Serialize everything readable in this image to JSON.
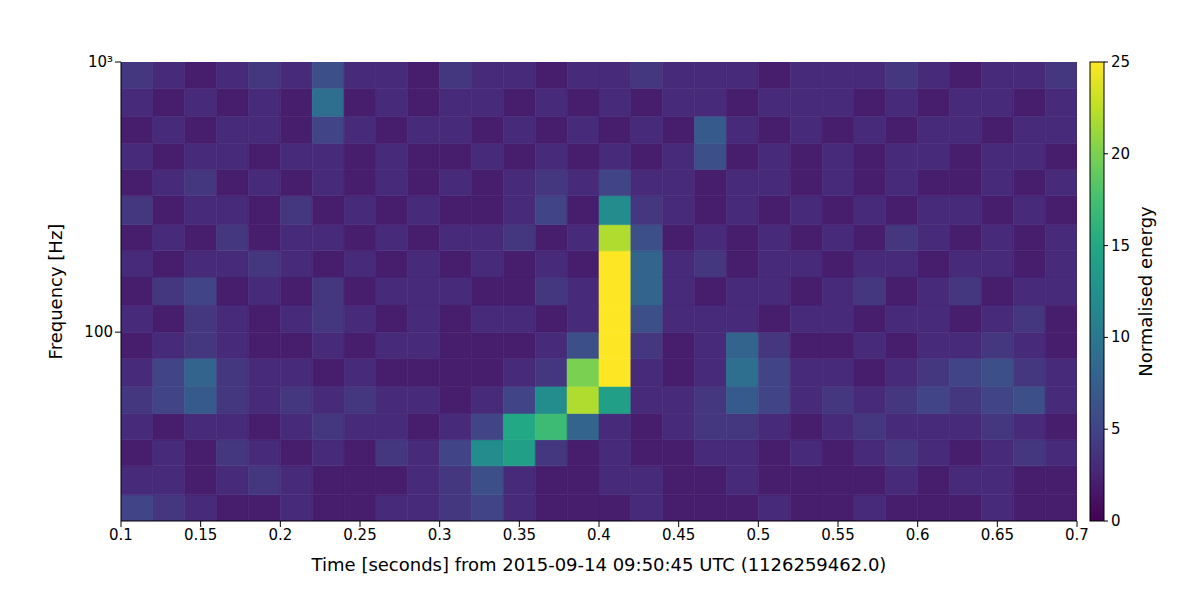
{
  "chart_data": {
    "type": "heatmap",
    "x_label": "Time [seconds] from 2015-09-14 09:50:45 UTC (1126259462.0)",
    "y_label": "Frequency [Hz]",
    "log": "y",
    "grid": false,
    "xlim": [
      0.1,
      0.7
    ],
    "xticks": [
      0.1,
      0.15,
      0.2,
      0.25,
      0.3,
      0.35,
      0.4,
      0.45,
      0.5,
      0.55,
      0.6,
      0.65,
      0.7
    ],
    "ylim": [
      20,
      1000
    ],
    "yticks": [
      {
        "value": 100,
        "label": "100"
      },
      {
        "value": 1000,
        "label": "10³"
      }
    ],
    "x_edges": [
      0.1,
      0.12,
      0.14,
      0.16,
      0.18,
      0.2,
      0.22,
      0.24,
      0.26,
      0.28,
      0.3,
      0.32,
      0.34,
      0.36,
      0.38,
      0.4,
      0.42,
      0.44,
      0.46,
      0.48,
      0.5,
      0.52,
      0.54,
      0.56,
      0.58,
      0.6,
      0.62,
      0.64,
      0.66,
      0.68,
      0.7
    ],
    "y_edges": [
      20,
      25,
      32,
      40,
      50,
      63,
      80,
      100,
      126,
      160,
      200,
      250,
      320,
      400,
      500,
      630,
      800,
      1000
    ],
    "cells": [
      [
        5,
        4,
        3,
        2,
        2,
        3,
        2,
        2,
        3,
        3,
        4,
        5,
        3,
        2,
        2,
        2,
        3,
        2,
        2,
        2,
        3,
        2,
        2,
        3,
        2,
        2,
        2,
        3,
        2,
        2
      ],
      [
        3,
        3,
        2,
        3,
        4,
        3,
        2,
        2,
        2,
        3,
        4,
        6,
        3,
        2,
        2,
        3,
        3,
        2,
        2,
        3,
        2,
        2,
        2,
        2,
        3,
        2,
        3,
        3,
        2,
        2
      ],
      [
        2,
        3,
        2,
        4,
        3,
        2,
        3,
        2,
        4,
        3,
        5,
        12,
        14,
        4,
        2,
        3,
        2,
        2,
        3,
        3,
        2,
        3,
        2,
        3,
        4,
        3,
        2,
        3,
        4,
        3
      ],
      [
        3,
        2,
        3,
        3,
        2,
        3,
        4,
        3,
        3,
        2,
        3,
        5,
        15,
        17,
        8,
        3,
        2,
        3,
        4,
        4,
        3,
        2,
        3,
        4,
        3,
        3,
        3,
        4,
        3,
        2
      ],
      [
        4,
        5,
        7,
        4,
        3,
        4,
        3,
        4,
        3,
        3,
        2,
        3,
        5,
        12,
        22,
        14,
        3,
        3,
        4,
        7,
        5,
        3,
        4,
        3,
        4,
        5,
        4,
        5,
        6,
        3
      ],
      [
        3,
        5,
        8,
        4,
        3,
        3,
        2,
        3,
        2,
        2,
        2,
        2,
        3,
        4,
        20,
        25,
        3,
        2,
        3,
        9,
        5,
        3,
        3,
        2,
        3,
        4,
        5,
        6,
        4,
        3
      ],
      [
        2,
        3,
        4,
        3,
        2,
        2,
        3,
        2,
        3,
        3,
        2,
        2,
        2,
        3,
        6,
        25,
        4,
        2,
        3,
        8,
        4,
        2,
        2,
        3,
        2,
        3,
        3,
        4,
        3,
        2
      ],
      [
        3,
        2,
        4,
        3,
        2,
        3,
        4,
        3,
        2,
        3,
        2,
        3,
        3,
        2,
        3,
        25,
        6,
        3,
        3,
        3,
        2,
        3,
        3,
        2,
        3,
        3,
        2,
        3,
        4,
        2
      ],
      [
        2,
        4,
        5,
        2,
        3,
        2,
        4,
        2,
        3,
        3,
        3,
        2,
        2,
        4,
        3,
        25,
        8,
        3,
        2,
        3,
        3,
        2,
        3,
        4,
        2,
        3,
        4,
        2,
        3,
        3
      ],
      [
        3,
        2,
        3,
        3,
        4,
        3,
        2,
        3,
        2,
        3,
        2,
        3,
        2,
        3,
        2,
        25,
        8,
        3,
        4,
        2,
        3,
        3,
        2,
        3,
        3,
        2,
        3,
        3,
        2,
        3
      ],
      [
        2,
        3,
        2,
        4,
        2,
        3,
        3,
        2,
        3,
        2,
        3,
        3,
        4,
        2,
        3,
        22,
        6,
        2,
        3,
        2,
        3,
        2,
        3,
        2,
        4,
        3,
        2,
        3,
        2,
        3
      ],
      [
        4,
        2,
        3,
        3,
        2,
        4,
        2,
        3,
        2,
        3,
        2,
        2,
        3,
        5,
        2,
        12,
        4,
        3,
        2,
        3,
        2,
        3,
        2,
        3,
        2,
        3,
        3,
        2,
        3,
        2
      ],
      [
        2,
        3,
        4,
        2,
        3,
        2,
        3,
        2,
        3,
        2,
        3,
        2,
        3,
        4,
        3,
        5,
        3,
        3,
        2,
        3,
        3,
        2,
        3,
        2,
        3,
        2,
        2,
        3,
        2,
        3
      ],
      [
        3,
        2,
        3,
        3,
        2,
        3,
        3,
        2,
        3,
        2,
        2,
        3,
        2,
        3,
        2,
        3,
        2,
        3,
        6,
        2,
        3,
        2,
        3,
        2,
        3,
        3,
        2,
        3,
        3,
        2
      ],
      [
        2,
        3,
        2,
        3,
        3,
        2,
        5,
        3,
        2,
        3,
        3,
        2,
        3,
        2,
        3,
        2,
        3,
        2,
        7,
        3,
        2,
        3,
        2,
        3,
        2,
        3,
        3,
        2,
        3,
        3
      ],
      [
        3,
        2,
        3,
        2,
        3,
        2,
        9,
        2,
        3,
        2,
        3,
        3,
        2,
        3,
        2,
        3,
        2,
        3,
        3,
        2,
        3,
        3,
        3,
        2,
        3,
        2,
        3,
        3,
        2,
        3
      ],
      [
        4,
        3,
        2,
        3,
        4,
        3,
        6,
        3,
        3,
        2,
        4,
        3,
        3,
        2,
        3,
        3,
        4,
        3,
        3,
        3,
        2,
        3,
        3,
        3,
        4,
        3,
        2,
        3,
        3,
        4
      ]
    ],
    "colorbar": {
      "label": "Normalised energy",
      "range": [
        0,
        25
      ],
      "ticks": [
        0,
        5,
        10,
        15,
        20,
        25
      ]
    }
  }
}
